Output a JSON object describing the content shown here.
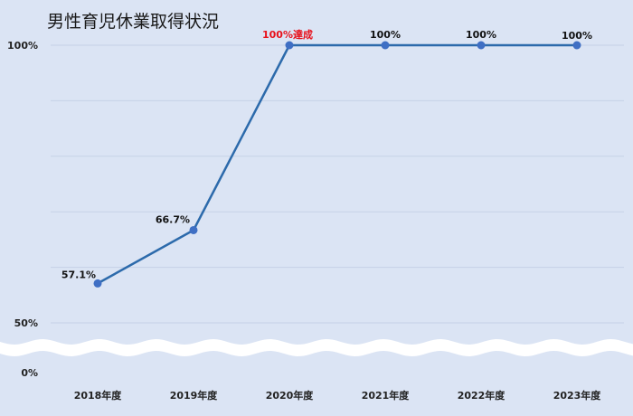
{
  "chart_data": {
    "type": "line",
    "title": "男性育児休業取得状況",
    "x": [
      "2018年度",
      "2019年度",
      "2020年度",
      "2021年度",
      "2022年度",
      "2023年度"
    ],
    "series": [
      {
        "values": [
          57.1,
          66.7,
          100,
          100,
          100,
          100
        ]
      }
    ],
    "data_labels": [
      "57.1%",
      "66.7%",
      "100%達成",
      "100%",
      "100%",
      "100%"
    ],
    "y_ticks": [
      {
        "value": 100,
        "label": "100%"
      },
      {
        "value": 50,
        "label": "50%"
      },
      {
        "value": 0,
        "label": "0%"
      }
    ],
    "ylim": [
      0,
      100
    ],
    "broken_axis": true,
    "grid": true,
    "colors": {
      "background": "#dbe4f4",
      "line": "#2c6aab",
      "marker": "#3f6fc4",
      "highlight_label": "#e8101a",
      "grid": "#c6d1e6",
      "break_band": "#ffffff"
    }
  }
}
